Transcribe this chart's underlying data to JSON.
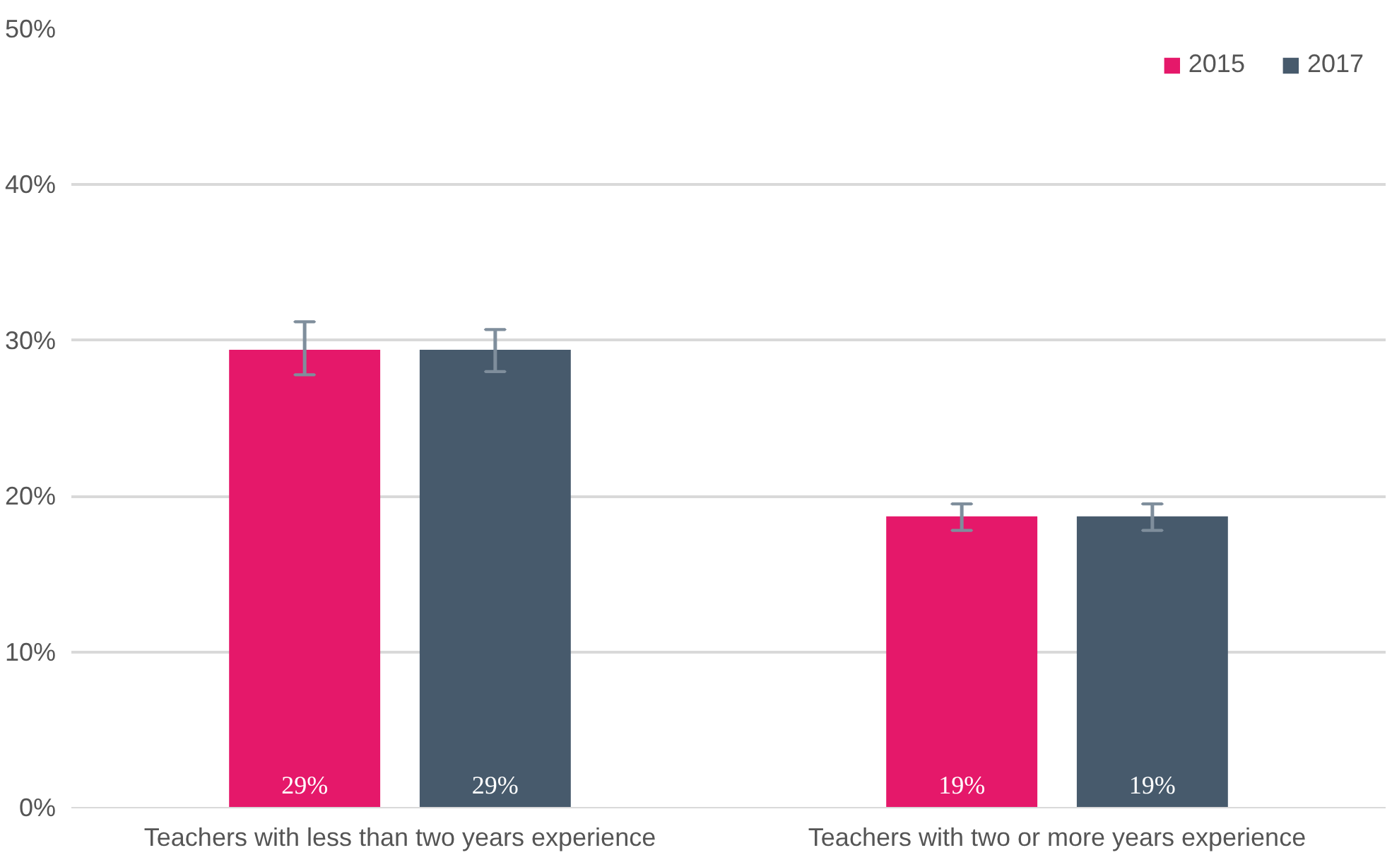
{
  "chart_data": {
    "type": "bar",
    "categories": [
      "Teachers with less than two years experience",
      "Teachers with two or more years experience"
    ],
    "series": [
      {
        "name": "2015",
        "color": "#e5186a",
        "values": [
          29.4,
          18.7
        ],
        "errors": [
          [
            27.8,
            31.2
          ],
          [
            17.8,
            19.5
          ]
        ],
        "value_labels": [
          "29%",
          "19%"
        ]
      },
      {
        "name": "2017",
        "color": "#475a6c",
        "values": [
          29.4,
          18.7
        ],
        "errors": [
          [
            28.0,
            30.7
          ],
          [
            17.8,
            19.5
          ]
        ],
        "value_labels": [
          "29%",
          "19%"
        ]
      }
    ],
    "ylim": [
      0,
      50
    ],
    "yticks": [
      {
        "value": 0,
        "label": "0%"
      },
      {
        "value": 10,
        "label": "10%"
      },
      {
        "value": 20,
        "label": "20%"
      },
      {
        "value": 30,
        "label": "30%"
      },
      {
        "value": 40,
        "label": "40%"
      },
      {
        "value": 50,
        "label": "50%"
      }
    ],
    "grid": "y",
    "legend": "top right"
  }
}
